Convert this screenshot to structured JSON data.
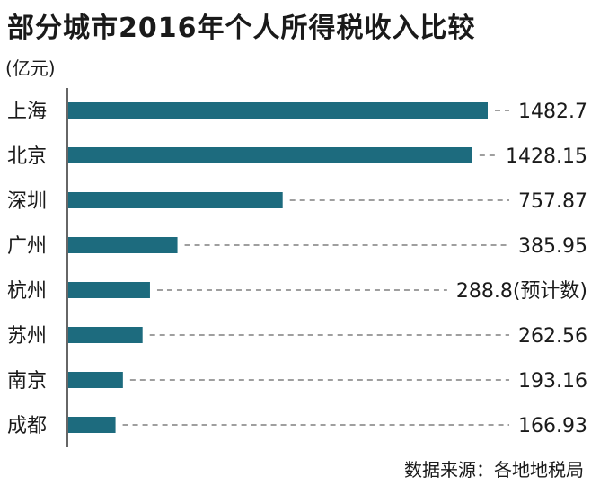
{
  "chart_data": {
    "type": "bar",
    "orientation": "horizontal",
    "title": "部分城市2016年个人所得税收入比较",
    "unit": "(亿元)",
    "categories": [
      "上海",
      "北京",
      "深圳",
      "广州",
      "杭州",
      "苏州",
      "南京",
      "成都"
    ],
    "values": [
      1482.7,
      1428.15,
      757.87,
      385.95,
      288.8,
      262.56,
      193.16,
      166.93
    ],
    "value_labels": [
      "1482.7",
      "1428.15",
      "757.87",
      "385.95",
      "288.8(预计数)",
      "262.56",
      "193.16",
      "166.93"
    ],
    "bar_color": "#1d6b7e",
    "leader_lines": "dashed",
    "axis_line": true,
    "gridlines": false,
    "source": "数据来源：各地地税局"
  }
}
